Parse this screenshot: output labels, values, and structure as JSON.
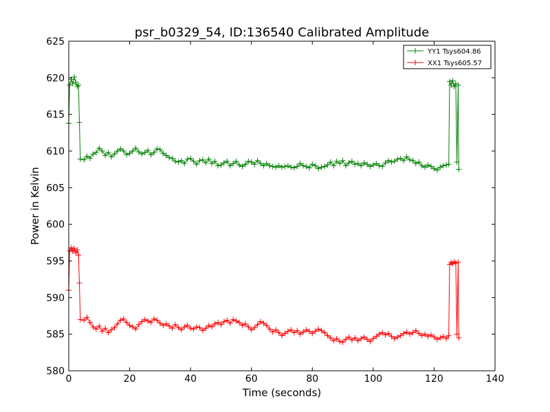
{
  "chart_data": {
    "type": "line",
    "title": "psr_b0329_54, ID:136540 Calibrated Amplitude",
    "xlabel": "Time (seconds)",
    "ylabel": "Power in Kelvin",
    "xlim": [
      0,
      140
    ],
    "ylim": [
      580,
      625
    ],
    "xticks": [
      0,
      20,
      40,
      60,
      80,
      100,
      120,
      140
    ],
    "yticks": [
      580,
      585,
      590,
      595,
      600,
      605,
      610,
      615,
      620,
      625
    ],
    "grid": false,
    "legend_position": "top-right",
    "marker": "+",
    "series": [
      {
        "name": "YY1 Tsys604.86",
        "color": "#008000",
        "points": [
          [
            0.0,
            613.8
          ],
          [
            0.3,
            619.0
          ],
          [
            0.8,
            619.8
          ],
          [
            1.3,
            619.2
          ],
          [
            1.8,
            620.1
          ],
          [
            2.3,
            619.4
          ],
          [
            2.8,
            618.8
          ],
          [
            3.2,
            619.0
          ],
          [
            3.5,
            613.9
          ],
          [
            3.8,
            608.9
          ],
          [
            5,
            608.8
          ],
          [
            6,
            609.3
          ],
          [
            7,
            609.0
          ],
          [
            8,
            609.6
          ],
          [
            9,
            609.8
          ],
          [
            10,
            610.4
          ],
          [
            11,
            610.0
          ],
          [
            12,
            609.4
          ],
          [
            13,
            609.8
          ],
          [
            14,
            609.2
          ],
          [
            15,
            609.6
          ],
          [
            16,
            610.0
          ],
          [
            17,
            610.3
          ],
          [
            18,
            610.0
          ],
          [
            19,
            609.5
          ],
          [
            20,
            609.7
          ],
          [
            21,
            610.0
          ],
          [
            22,
            610.4
          ],
          [
            23,
            609.9
          ],
          [
            24,
            609.6
          ],
          [
            25,
            609.8
          ],
          [
            26,
            610.1
          ],
          [
            27,
            609.5
          ],
          [
            28,
            609.8
          ],
          [
            29,
            610.3
          ],
          [
            30,
            610.2
          ],
          [
            31,
            609.7
          ],
          [
            32,
            609.4
          ],
          [
            33,
            609.1
          ],
          [
            34,
            609.0
          ],
          [
            35,
            608.6
          ],
          [
            36,
            608.5
          ],
          [
            37,
            608.7
          ],
          [
            38,
            608.3
          ],
          [
            39,
            608.9
          ],
          [
            40,
            609.0
          ],
          [
            41,
            608.6
          ],
          [
            42,
            608.2
          ],
          [
            43,
            608.7
          ],
          [
            44,
            608.8
          ],
          [
            45,
            608.4
          ],
          [
            46,
            608.9
          ],
          [
            47,
            608.3
          ],
          [
            48,
            608.6
          ],
          [
            49,
            608.0
          ],
          [
            50,
            608.1
          ],
          [
            51,
            608.4
          ],
          [
            52,
            608.6
          ],
          [
            53,
            608.0
          ],
          [
            54,
            608.3
          ],
          [
            55,
            608.6
          ],
          [
            56,
            608.1
          ],
          [
            57,
            607.9
          ],
          [
            58,
            608.2
          ],
          [
            59,
            608.6
          ],
          [
            60,
            608.5
          ],
          [
            61,
            608.2
          ],
          [
            62,
            608.7
          ],
          [
            63,
            608.3
          ],
          [
            64,
            608.0
          ],
          [
            65,
            608.3
          ],
          [
            66,
            608.0
          ],
          [
            67,
            607.9
          ],
          [
            68,
            607.8
          ],
          [
            69,
            608.0
          ],
          [
            70,
            607.8
          ],
          [
            71,
            607.9
          ],
          [
            72,
            608.0
          ],
          [
            73,
            607.8
          ],
          [
            74,
            607.7
          ],
          [
            75,
            607.9
          ],
          [
            76,
            608.3
          ],
          [
            77,
            608.0
          ],
          [
            78,
            607.9
          ],
          [
            79,
            607.7
          ],
          [
            80,
            608.2
          ],
          [
            81,
            608.0
          ],
          [
            82,
            607.6
          ],
          [
            83,
            607.8
          ],
          [
            84,
            607.9
          ],
          [
            85,
            608.1
          ],
          [
            86,
            608.5
          ],
          [
            87,
            608.0
          ],
          [
            88,
            608.6
          ],
          [
            89,
            608.3
          ],
          [
            90,
            608.7
          ],
          [
            91,
            608.0
          ],
          [
            92,
            608.4
          ],
          [
            93,
            608.6
          ],
          [
            94,
            608.2
          ],
          [
            95,
            608.3
          ],
          [
            96,
            608.0
          ],
          [
            97,
            608.4
          ],
          [
            98,
            608.2
          ],
          [
            99,
            607.9
          ],
          [
            100,
            608.1
          ],
          [
            101,
            608.3
          ],
          [
            102,
            608.0
          ],
          [
            103,
            607.9
          ],
          [
            104,
            608.4
          ],
          [
            105,
            608.7
          ],
          [
            106,
            608.5
          ],
          [
            107,
            608.6
          ],
          [
            108,
            608.9
          ],
          [
            109,
            609.0
          ],
          [
            110,
            608.7
          ],
          [
            111,
            609.2
          ],
          [
            112,
            608.8
          ],
          [
            113,
            608.7
          ],
          [
            114,
            608.3
          ],
          [
            115,
            608.5
          ],
          [
            116,
            608.0
          ],
          [
            117,
            607.8
          ],
          [
            118,
            608.1
          ],
          [
            119,
            607.9
          ],
          [
            120,
            607.6
          ],
          [
            121,
            607.4
          ],
          [
            122,
            607.8
          ],
          [
            123,
            608.0
          ],
          [
            124,
            608.1
          ],
          [
            124.8,
            608.2
          ],
          [
            125.1,
            619.5
          ],
          [
            125.6,
            619.0
          ],
          [
            126.1,
            619.6
          ],
          [
            126.6,
            618.8
          ],
          [
            127.1,
            619.2
          ],
          [
            127.5,
            608.5
          ],
          [
            127.9,
            619.0
          ],
          [
            128.1,
            607.5
          ]
        ]
      },
      {
        "name": "XX1 Tsys605.57",
        "color": "#ff0000",
        "points": [
          [
            0.0,
            591.0
          ],
          [
            0.3,
            596.4
          ],
          [
            0.8,
            596.8
          ],
          [
            1.3,
            596.3
          ],
          [
            1.8,
            596.7
          ],
          [
            2.3,
            596.1
          ],
          [
            2.8,
            596.5
          ],
          [
            3.2,
            595.8
          ],
          [
            3.5,
            592.0
          ],
          [
            3.8,
            587.0
          ],
          [
            5,
            586.9
          ],
          [
            6,
            587.3
          ],
          [
            7,
            586.6
          ],
          [
            8,
            586.0
          ],
          [
            9,
            585.7
          ],
          [
            10,
            586.1
          ],
          [
            11,
            585.4
          ],
          [
            12,
            585.8
          ],
          [
            13,
            585.2
          ],
          [
            14,
            585.6
          ],
          [
            15,
            585.9
          ],
          [
            16,
            586.4
          ],
          [
            17,
            586.9
          ],
          [
            18,
            587.1
          ],
          [
            19,
            586.6
          ],
          [
            20,
            586.2
          ],
          [
            21,
            586.0
          ],
          [
            22,
            585.7
          ],
          [
            23,
            586.3
          ],
          [
            24,
            586.7
          ],
          [
            25,
            587.0
          ],
          [
            26,
            586.8
          ],
          [
            27,
            586.6
          ],
          [
            28,
            587.1
          ],
          [
            29,
            586.9
          ],
          [
            30,
            586.5
          ],
          [
            31,
            586.2
          ],
          [
            32,
            586.4
          ],
          [
            33,
            586.1
          ],
          [
            34,
            585.8
          ],
          [
            35,
            586.3
          ],
          [
            36,
            585.9
          ],
          [
            37,
            585.6
          ],
          [
            38,
            586.0
          ],
          [
            39,
            586.2
          ],
          [
            40,
            585.8
          ],
          [
            41,
            585.7
          ],
          [
            42,
            586.0
          ],
          [
            43,
            585.9
          ],
          [
            44,
            585.5
          ],
          [
            45,
            585.8
          ],
          [
            46,
            586.2
          ],
          [
            47,
            586.0
          ],
          [
            48,
            586.4
          ],
          [
            49,
            586.6
          ],
          [
            50,
            586.3
          ],
          [
            51,
            586.7
          ],
          [
            52,
            586.9
          ],
          [
            53,
            586.5
          ],
          [
            54,
            587.0
          ],
          [
            55,
            586.8
          ],
          [
            56,
            586.6
          ],
          [
            57,
            586.2
          ],
          [
            58,
            586.4
          ],
          [
            59,
            586.0
          ],
          [
            60,
            585.6
          ],
          [
            61,
            585.9
          ],
          [
            62,
            586.3
          ],
          [
            63,
            586.7
          ],
          [
            64,
            586.5
          ],
          [
            65,
            586.2
          ],
          [
            66,
            585.7
          ],
          [
            67,
            585.3
          ],
          [
            68,
            585.6
          ],
          [
            69,
            585.2
          ],
          [
            70,
            584.8
          ],
          [
            71,
            585.1
          ],
          [
            72,
            585.4
          ],
          [
            73,
            585.6
          ],
          [
            74,
            585.2
          ],
          [
            75,
            585.5
          ],
          [
            76,
            585.0
          ],
          [
            77,
            585.3
          ],
          [
            78,
            585.6
          ],
          [
            79,
            585.4
          ],
          [
            80,
            585.1
          ],
          [
            81,
            585.4
          ],
          [
            82,
            585.7
          ],
          [
            83,
            585.5
          ],
          [
            84,
            585.2
          ],
          [
            85,
            584.8
          ],
          [
            86,
            584.5
          ],
          [
            87,
            584.1
          ],
          [
            88,
            584.4
          ],
          [
            89,
            584.0
          ],
          [
            90,
            583.9
          ],
          [
            91,
            584.3
          ],
          [
            92,
            584.6
          ],
          [
            93,
            584.2
          ],
          [
            94,
            584.5
          ],
          [
            95,
            584.1
          ],
          [
            96,
            584.4
          ],
          [
            97,
            584.6
          ],
          [
            98,
            584.3
          ],
          [
            99,
            584.0
          ],
          [
            100,
            584.4
          ],
          [
            101,
            584.7
          ],
          [
            102,
            585.0
          ],
          [
            103,
            585.2
          ],
          [
            104,
            584.9
          ],
          [
            105,
            585.1
          ],
          [
            106,
            584.7
          ],
          [
            107,
            584.4
          ],
          [
            108,
            584.6
          ],
          [
            109,
            584.8
          ],
          [
            110,
            585.1
          ],
          [
            111,
            585.3
          ],
          [
            112,
            585.0
          ],
          [
            113,
            585.2
          ],
          [
            114,
            585.5
          ],
          [
            115,
            585.1
          ],
          [
            116,
            584.8
          ],
          [
            117,
            585.0
          ],
          [
            118,
            584.7
          ],
          [
            119,
            584.9
          ],
          [
            120,
            584.6
          ],
          [
            121,
            584.3
          ],
          [
            122,
            584.5
          ],
          [
            123,
            584.7
          ],
          [
            124,
            584.4
          ],
          [
            124.8,
            584.8
          ],
          [
            125.1,
            594.5
          ],
          [
            125.6,
            594.8
          ],
          [
            126.1,
            594.6
          ],
          [
            126.6,
            594.9
          ],
          [
            127.1,
            594.7
          ],
          [
            127.5,
            585.0
          ],
          [
            127.9,
            594.8
          ],
          [
            128.1,
            584.5
          ]
        ]
      }
    ]
  }
}
